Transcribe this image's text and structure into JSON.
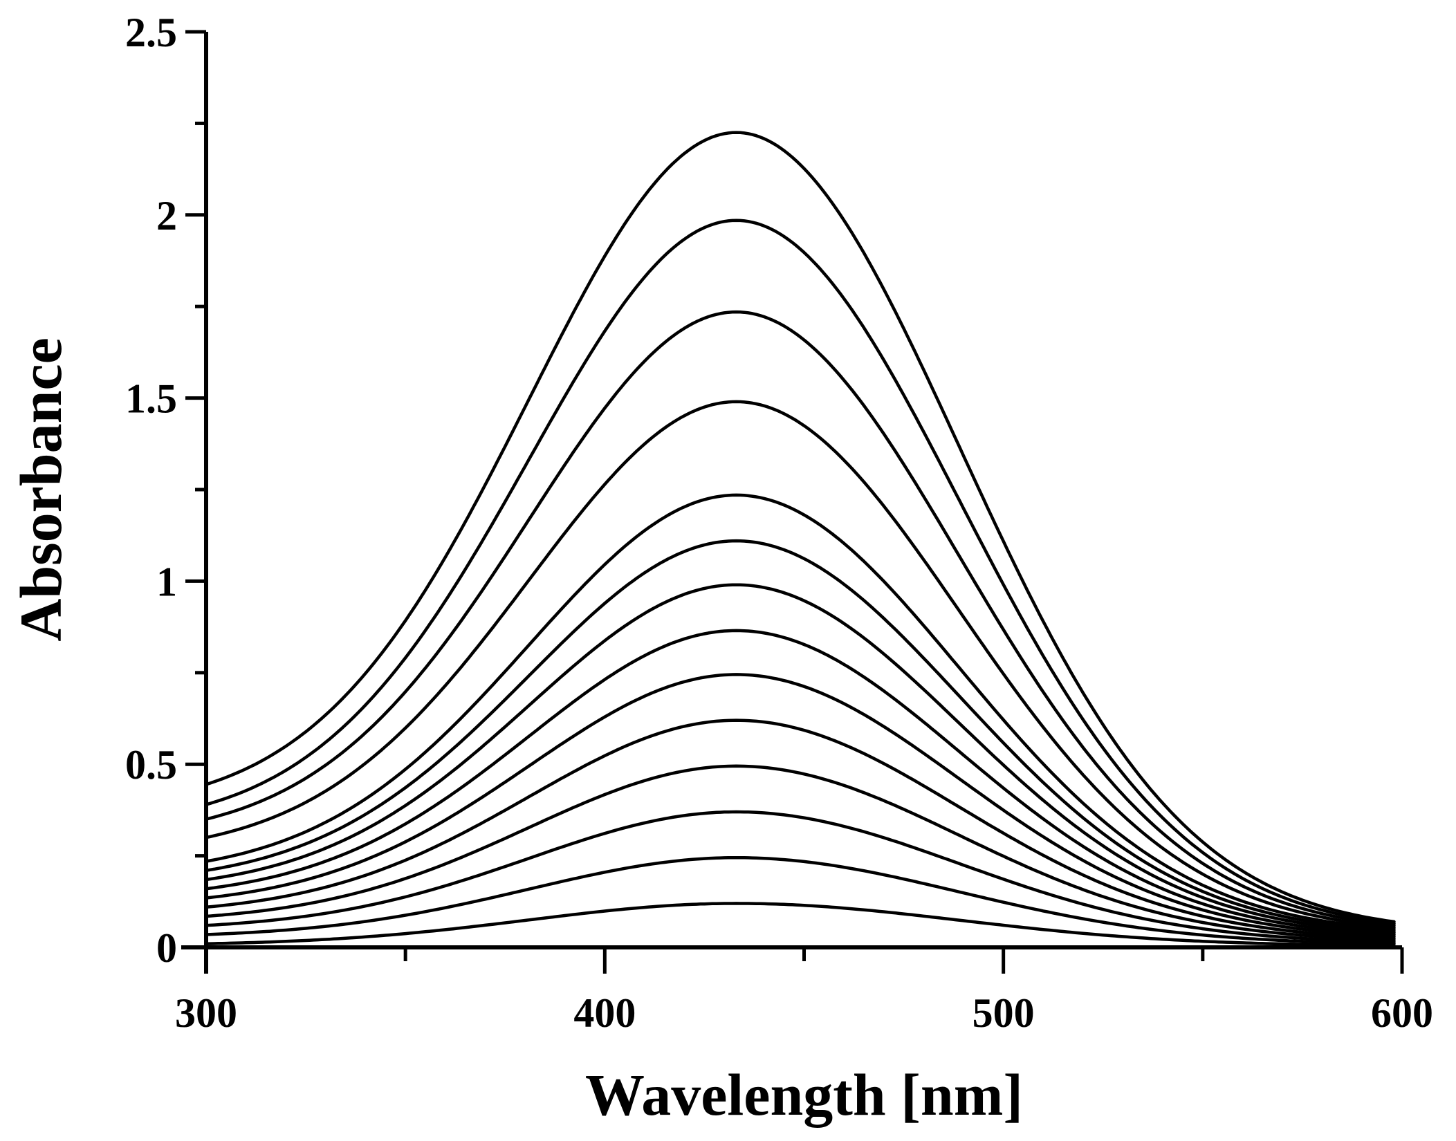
{
  "chart_data": {
    "type": "line",
    "xlabel": "Wavelength [nm]",
    "ylabel": "Absorbance",
    "xlim": [
      300,
      600
    ],
    "ylim": [
      0,
      2.5
    ],
    "x_ticks": [
      300,
      400,
      500,
      600
    ],
    "x_tick_labels": [
      "300",
      "400",
      "500",
      "600"
    ],
    "x_minor_ticks": [
      350,
      450,
      550
    ],
    "y_ticks": [
      0,
      0.5,
      1,
      1.5,
      2,
      2.5
    ],
    "y_tick_labels": [
      "0",
      "0.5",
      "1",
      "1.5",
      "2",
      "2.5"
    ],
    "y_minor_ticks": [
      0.25,
      0.75,
      1.25,
      1.75,
      2.25
    ],
    "grid": false,
    "legend": "none",
    "line_color": "#000000",
    "peak_wavelength": 433,
    "x_end": 598,
    "series": [
      {
        "peak": 0.12,
        "start": 0.01,
        "end": 0.005
      },
      {
        "peak": 0.245,
        "start": 0.035,
        "end": 0.01
      },
      {
        "peak": 0.37,
        "start": 0.06,
        "end": 0.015
      },
      {
        "peak": 0.495,
        "start": 0.085,
        "end": 0.02
      },
      {
        "peak": 0.62,
        "start": 0.11,
        "end": 0.025
      },
      {
        "peak": 0.745,
        "start": 0.135,
        "end": 0.03
      },
      {
        "peak": 0.865,
        "start": 0.16,
        "end": 0.035
      },
      {
        "peak": 0.99,
        "start": 0.185,
        "end": 0.04
      },
      {
        "peak": 1.11,
        "start": 0.21,
        "end": 0.045
      },
      {
        "peak": 1.235,
        "start": 0.235,
        "end": 0.05
      },
      {
        "peak": 1.49,
        "start": 0.3,
        "end": 0.055
      },
      {
        "peak": 1.735,
        "start": 0.35,
        "end": 0.06
      },
      {
        "peak": 1.985,
        "start": 0.39,
        "end": 0.065
      },
      {
        "peak": 2.225,
        "start": 0.445,
        "end": 0.07
      }
    ]
  }
}
